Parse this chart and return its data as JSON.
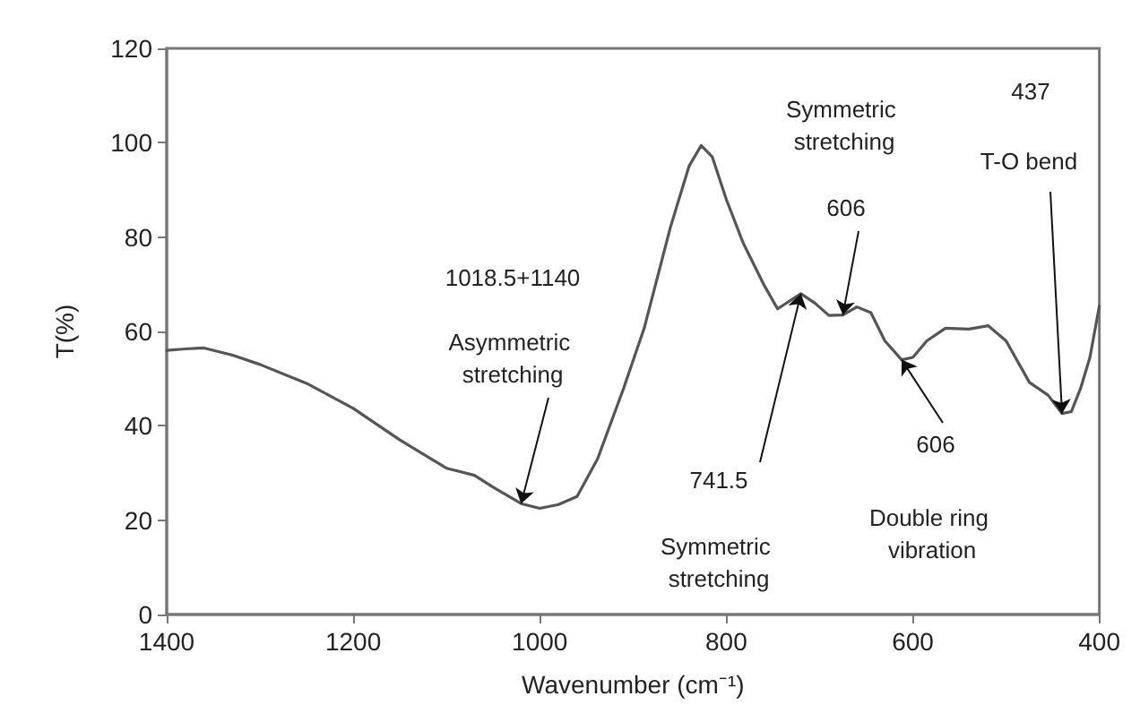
{
  "chart_data": {
    "type": "line",
    "xlabel": "Wavenumber (cm⁻¹)",
    "ylabel": "T(%)",
    "x": [
      1400,
      1380,
      1360,
      1330,
      1300,
      1250,
      1200,
      1150,
      1100,
      1070,
      1050,
      1020,
      1000,
      980,
      960,
      938,
      910,
      888,
      860,
      840,
      827,
      815,
      800,
      782,
      760,
      745,
      720,
      705,
      690,
      675,
      660,
      645,
      630,
      612,
      600,
      585,
      565,
      540,
      519,
      500,
      475,
      455,
      440,
      430,
      420,
      410,
      400
    ],
    "series": [
      {
        "color": "#555555",
        "values": [
          56,
          56.3,
          56.5,
          55,
          53,
          49,
          43.7,
          37,
          31,
          29.5,
          27,
          23.5,
          22.5,
          23.3,
          25,
          33,
          48,
          60.7,
          82,
          95,
          99.4,
          97,
          88,
          78.8,
          70,
          64.8,
          68,
          66,
          63.4,
          63.5,
          65.2,
          64,
          58,
          54,
          54.5,
          58,
          60.7,
          60.5,
          61.2,
          58,
          49.2,
          46.5,
          42.6,
          43,
          48,
          54.6,
          65.4
        ]
      }
    ],
    "xlim": [
      1400,
      400
    ],
    "xticks": [
      1400,
      1200,
      1000,
      800,
      600,
      400
    ],
    "ylim": [
      0,
      120
    ],
    "yticks": [
      0,
      20,
      40,
      60,
      80,
      100,
      120
    ],
    "grid": false,
    "marker": "none",
    "line_style": "solid",
    "annotations": [
      "1018.5+1140",
      {
        "text": "Asymmetric stretching",
        "x": 1020,
        "y": 23.5
      },
      "Symmetric stretching",
      {
        "text": "606",
        "x": 675,
        "y": 63.5
      },
      "437",
      {
        "text": "T-O bend",
        "x": 440,
        "y": 42.6
      },
      {
        "text": "741.5",
        "x": 720,
        "y": 68
      },
      "Symmetric stretching",
      {
        "text": "606",
        "x": 612,
        "y": 54
      },
      "Double ring vibration"
    ]
  }
}
